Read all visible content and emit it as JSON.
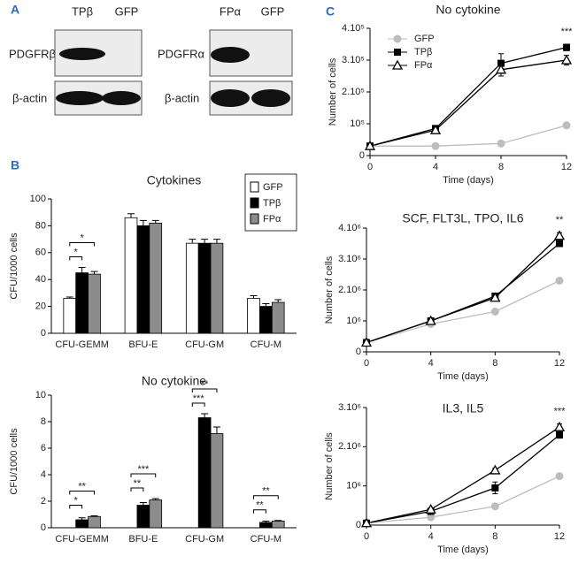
{
  "panel_labels": [
    "A",
    "B",
    "C"
  ],
  "blots": [
    {
      "lanes": [
        "TPβ",
        "GFP"
      ],
      "rows": [
        "PDGFRβ",
        "β-actin"
      ]
    },
    {
      "lanes": [
        "FPα",
        "GFP"
      ],
      "rows": [
        "PDGFRα",
        "β-actin"
      ]
    }
  ],
  "chart_data": [
    {
      "type": "bar",
      "title": "Cytokines",
      "ylabel": "CFU/1000 cells",
      "categories": [
        "CFU-GEMM",
        "BFU-E",
        "CFU-GM",
        "CFU-M"
      ],
      "series": [
        {
          "name": "GFP",
          "color": "#ffffff",
          "values": [
            26,
            86,
            67,
            26
          ],
          "errors": [
            1,
            3,
            3,
            2
          ]
        },
        {
          "name": "TPβ",
          "color": "#000000",
          "values": [
            45,
            80,
            67,
            20
          ],
          "errors": [
            4,
            4,
            3,
            2
          ]
        },
        {
          "name": "FPα",
          "color": "#8c8c8c",
          "values": [
            44,
            82,
            67,
            23
          ],
          "errors": [
            2,
            2,
            3,
            2
          ]
        }
      ],
      "ylim": [
        0,
        100
      ],
      "yticks": [
        0,
        20,
        40,
        60,
        80,
        100
      ],
      "annotations": [
        "*",
        "*"
      ],
      "legend": "upper right"
    },
    {
      "type": "bar",
      "title": "No cytokine",
      "ylabel": "CFU/1000 cells",
      "categories": [
        "CFU-GEMM",
        "BFU-E",
        "CFU-GM",
        "CFU-M"
      ],
      "series": [
        {
          "name": "GFP",
          "color": "#ffffff",
          "values": [
            0,
            0,
            0,
            0
          ],
          "errors": [
            0,
            0,
            0,
            0
          ]
        },
        {
          "name": "TPβ",
          "color": "#000000",
          "values": [
            0.6,
            1.7,
            8.3,
            0.4
          ],
          "errors": [
            0.15,
            0.2,
            0.3,
            0.1
          ]
        },
        {
          "name": "FPα",
          "color": "#8c8c8c",
          "values": [
            0.85,
            2.1,
            7.1,
            0.5
          ],
          "errors": [
            0.05,
            0.1,
            0.5,
            0.05
          ]
        }
      ],
      "ylim": [
        0,
        10
      ],
      "yticks": [
        0,
        2,
        4,
        6,
        8,
        10
      ],
      "annotations": [
        "*",
        "**",
        "**",
        "***",
        "***",
        "**",
        "**",
        "**"
      ]
    },
    {
      "type": "line",
      "title": "No cytokine",
      "xlabel": "Time (days)",
      "ylabel": "Number of cells",
      "x": [
        0,
        4,
        8,
        12
      ],
      "series": [
        {
          "name": "GFP",
          "color": "#bdbdbd",
          "marker": "circle",
          "values": [
            30000,
            30000,
            38000,
            95000
          ],
          "errors": [
            2000,
            2000,
            3000,
            4000
          ]
        },
        {
          "name": "TPβ",
          "color": "#000000",
          "marker": "square",
          "values": [
            30000,
            85000,
            290000,
            340000
          ],
          "errors": [
            3000,
            5000,
            30000,
            10000
          ]
        },
        {
          "name": "FPα",
          "color": "#000000",
          "marker": "triangle",
          "values": [
            30000,
            80000,
            270000,
            300000
          ],
          "errors": [
            3000,
            5000,
            20000,
            15000
          ]
        }
      ],
      "xlim": [
        0,
        12
      ],
      "xticks": [
        0,
        4,
        8,
        12
      ],
      "ylim": [
        0,
        400000
      ],
      "yticks": [
        0,
        {
          "value": 100000,
          "label": "10⁵"
        },
        {
          "value": 200000,
          "label": "2.10⁵"
        },
        {
          "value": 300000,
          "label": "3.10⁵"
        },
        {
          "value": 400000,
          "label": "4.10⁵"
        }
      ],
      "annotations": [
        "***"
      ],
      "legend": "upper left"
    },
    {
      "type": "line",
      "title": "SCF, FLT3L, TPO, IL6",
      "xlabel": "Time (days)",
      "ylabel": "Number of cells",
      "x": [
        0,
        4,
        8,
        12
      ],
      "series": [
        {
          "name": "GFP",
          "color": "#bdbdbd",
          "marker": "circle",
          "values": [
            300000,
            900000,
            1300000,
            2300000
          ],
          "errors": [
            20000,
            30000,
            50000,
            50000
          ]
        },
        {
          "name": "TPβ",
          "color": "#000000",
          "marker": "square",
          "values": [
            300000,
            1000000,
            1800000,
            3500000
          ],
          "errors": [
            20000,
            50000,
            100000,
            100000
          ]
        },
        {
          "name": "FPα",
          "color": "#000000",
          "marker": "triangle",
          "values": [
            300000,
            1000000,
            1750000,
            3750000
          ],
          "errors": [
            20000,
            50000,
            100000,
            100000
          ]
        }
      ],
      "xlim": [
        0,
        12
      ],
      "xticks": [
        0,
        4,
        8,
        12
      ],
      "ylim": [
        0,
        4000000
      ],
      "yticks": [
        0,
        {
          "value": 1000000,
          "label": "10⁶"
        },
        {
          "value": 2000000,
          "label": "2.10⁶"
        },
        {
          "value": 3000000,
          "label": "3.10⁶"
        },
        {
          "value": 4000000,
          "label": "4.10⁶"
        }
      ],
      "annotations": [
        "**"
      ]
    },
    {
      "type": "line",
      "title": "IL3, IL5",
      "xlabel": "Time (days)",
      "ylabel": "Number of cells",
      "x": [
        0,
        4,
        8,
        12
      ],
      "series": [
        {
          "name": "GFP",
          "color": "#bdbdbd",
          "marker": "circle",
          "values": [
            50000,
            200000,
            480000,
            1250000
          ],
          "errors": [
            5000,
            10000,
            20000,
            30000
          ]
        },
        {
          "name": "TPβ",
          "color": "#000000",
          "marker": "square",
          "values": [
            50000,
            350000,
            950000,
            2300000
          ],
          "errors": [
            5000,
            20000,
            150000,
            80000
          ]
        },
        {
          "name": "FPα",
          "color": "#000000",
          "marker": "triangle",
          "values": [
            50000,
            400000,
            1400000,
            2500000
          ],
          "errors": [
            5000,
            20000,
            50000,
            80000
          ]
        }
      ],
      "xlim": [
        0,
        12
      ],
      "xticks": [
        0,
        4,
        8,
        12
      ],
      "ylim": [
        0,
        3000000
      ],
      "yticks": [
        0,
        {
          "value": 1000000,
          "label": "10⁶"
        },
        {
          "value": 2000000,
          "label": "2.10⁶"
        },
        {
          "value": 3000000,
          "label": "3.10⁶"
        }
      ],
      "annotations": [
        "***"
      ]
    }
  ]
}
